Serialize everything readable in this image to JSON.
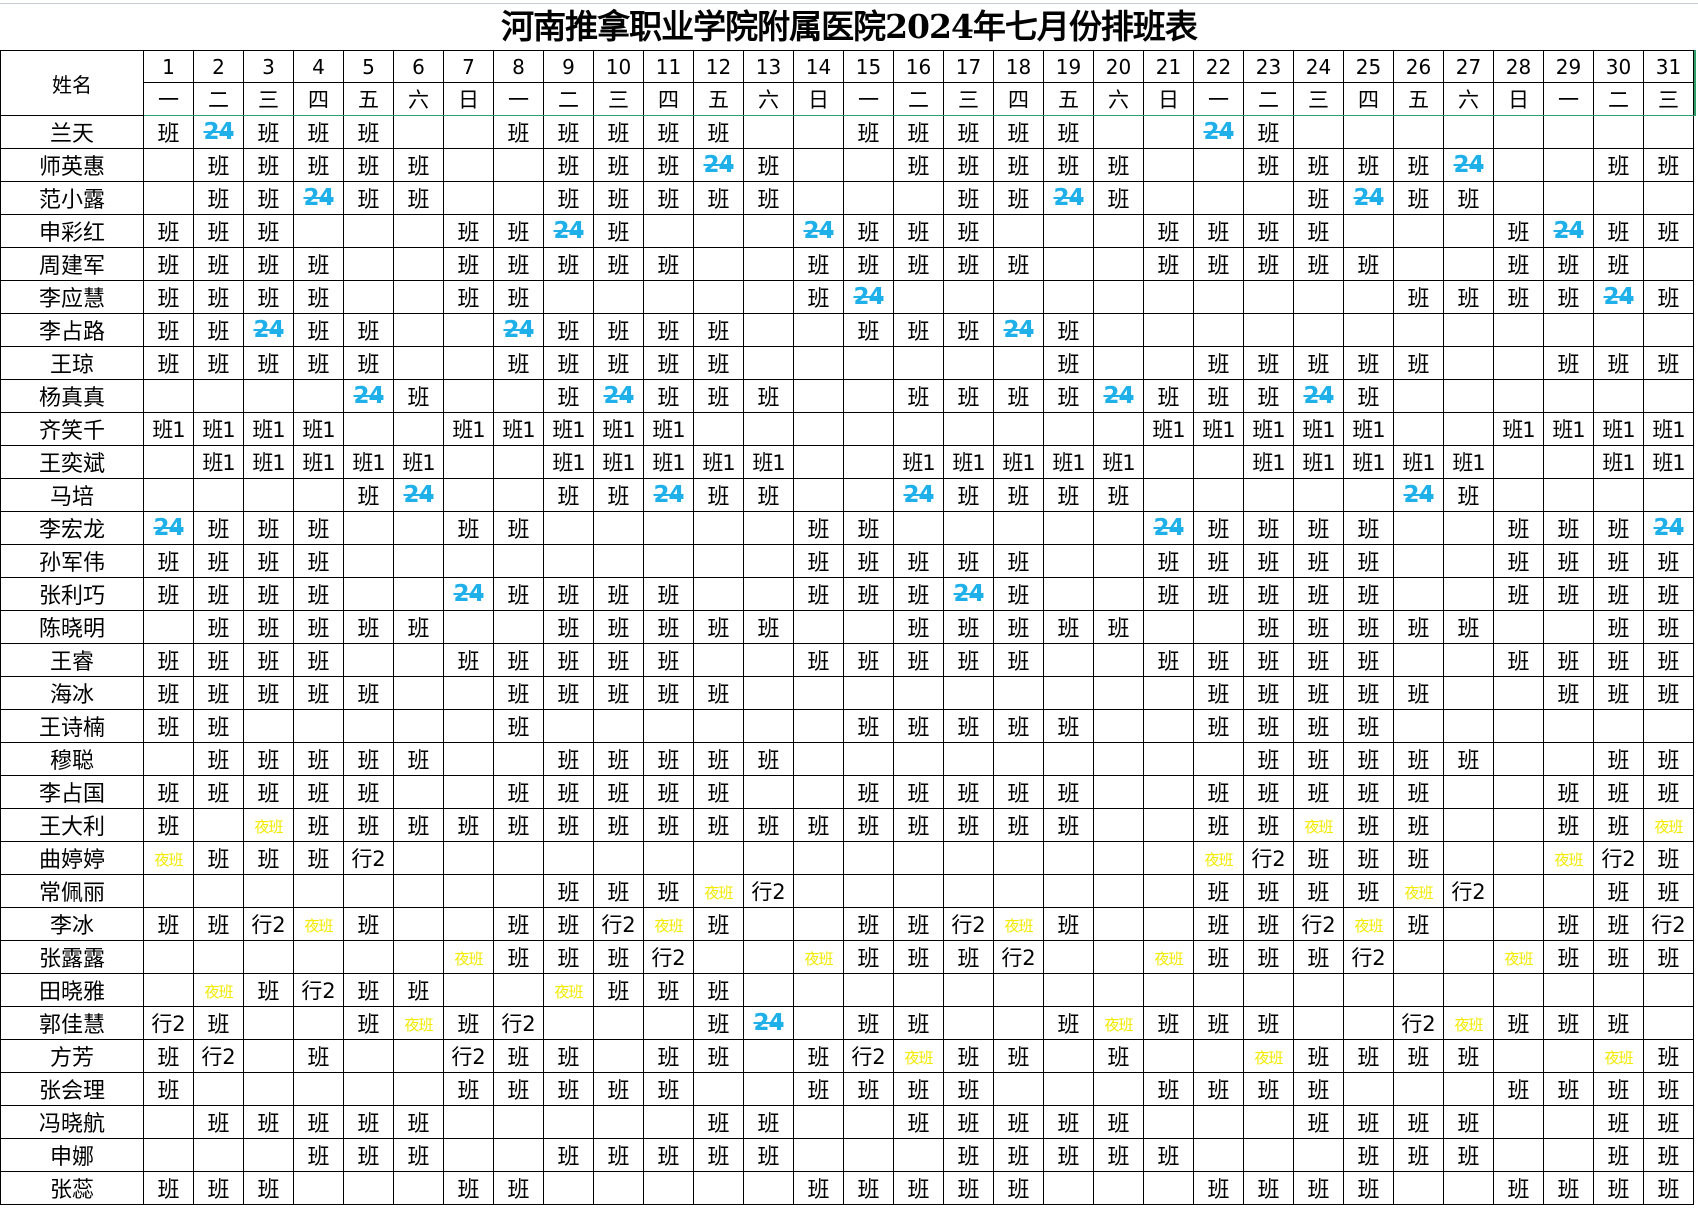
{
  "title": "河南推拿职业学院附属医院2024年七月份排班表",
  "header": {
    "name_label": "姓名",
    "days": [
      "1",
      "2",
      "3",
      "4",
      "5",
      "6",
      "7",
      "8",
      "9",
      "10",
      "11",
      "12",
      "13",
      "14",
      "15",
      "16",
      "17",
      "18",
      "19",
      "20",
      "21",
      "22",
      "23",
      "24",
      "25",
      "26",
      "27",
      "28",
      "29",
      "30",
      "31"
    ],
    "weekdays": [
      "一",
      "二",
      "三",
      "四",
      "五",
      "六",
      "日",
      "一",
      "二",
      "三",
      "四",
      "五",
      "六",
      "日",
      "一",
      "二",
      "三",
      "四",
      "五",
      "六",
      "日",
      "一",
      "二",
      "三",
      "四",
      "五",
      "六",
      "日",
      "一",
      "二",
      "三"
    ]
  },
  "colors": {
    "on_call_24": "#1fb0ea",
    "night_shift": "#f2ea00",
    "grid": "#000000",
    "selection": "#2e9e6a"
  },
  "rows": [
    {
      "name": "兰天",
      "cells": [
        "班",
        "24",
        "班",
        "班",
        "班",
        "",
        "",
        "班",
        "班",
        "班",
        "班",
        "班",
        "",
        "",
        "班",
        "班",
        "班",
        "班",
        "班",
        "",
        "",
        "24",
        "班",
        "",
        "",
        "",
        "",
        "",
        "",
        "",
        ""
      ]
    },
    {
      "name": "师英惠",
      "cells": [
        "",
        "班",
        "班",
        "班",
        "班",
        "班",
        "",
        "",
        "班",
        "班",
        "班",
        "24",
        "班",
        "",
        "",
        "班",
        "班",
        "班",
        "班",
        "班",
        "",
        "",
        "班",
        "班",
        "班",
        "班",
        "24",
        "",
        "",
        "班",
        "班"
      ]
    },
    {
      "name": "范小露",
      "cells": [
        "",
        "班",
        "班",
        "24",
        "班",
        "班",
        "",
        "",
        "班",
        "班",
        "班",
        "班",
        "班",
        "",
        "",
        "",
        "班",
        "班",
        "24",
        "班",
        "",
        "",
        "",
        "班",
        "24",
        "班",
        "班",
        "",
        "",
        "",
        ""
      ]
    },
    {
      "name": "申彩红",
      "cells": [
        "班",
        "班",
        "班",
        "",
        "",
        "",
        "班",
        "班",
        "24",
        "班",
        "",
        "",
        "",
        "24",
        "班",
        "班",
        "班",
        "",
        "",
        "",
        "班",
        "班",
        "班",
        "班",
        "",
        "",
        "",
        "班",
        "24",
        "班",
        "班"
      ]
    },
    {
      "name": "周建军",
      "cells": [
        "班",
        "班",
        "班",
        "班",
        "",
        "",
        "班",
        "班",
        "班",
        "班",
        "班",
        "",
        "",
        "班",
        "班",
        "班",
        "班",
        "班",
        "",
        "",
        "班",
        "班",
        "班",
        "班",
        "班",
        "",
        "",
        "班",
        "班",
        "班",
        ""
      ]
    },
    {
      "name": "李应慧",
      "cells": [
        "班",
        "班",
        "班",
        "班",
        "",
        "",
        "班",
        "班",
        "",
        "",
        "",
        "",
        "",
        "班",
        "24",
        "",
        "",
        "",
        "",
        "",
        "",
        "",
        "",
        "",
        "",
        "班",
        "班",
        "班",
        "班",
        "24",
        "班"
      ]
    },
    {
      "name": "李占路",
      "cells": [
        "班",
        "班",
        "24",
        "班",
        "班",
        "",
        "",
        "24",
        "班",
        "班",
        "班",
        "班",
        "",
        "",
        "班",
        "班",
        "班",
        "24",
        "班",
        "",
        "",
        "",
        "",
        "",
        "",
        "",
        "",
        "",
        "",
        "",
        ""
      ]
    },
    {
      "name": "王琼",
      "cells": [
        "班",
        "班",
        "班",
        "班",
        "班",
        "",
        "",
        "班",
        "班",
        "班",
        "班",
        "班",
        "",
        "",
        "",
        "",
        "",
        "",
        "班",
        "",
        "",
        "班",
        "班",
        "班",
        "班",
        "班",
        "",
        "",
        "班",
        "班",
        "班"
      ]
    },
    {
      "name": "杨真真",
      "cells": [
        "",
        "",
        "",
        "",
        "24",
        "班",
        "",
        "",
        "班",
        "24",
        "班",
        "班",
        "班",
        "",
        "",
        "班",
        "班",
        "班",
        "班",
        "24",
        "班",
        "班",
        "班",
        "24",
        "班",
        "",
        "",
        "",
        "",
        "",
        ""
      ]
    },
    {
      "name": "齐笑千",
      "cells": [
        "班1",
        "班1",
        "班1",
        "班1",
        "",
        "",
        "班1",
        "班1",
        "班1",
        "班1",
        "班1",
        "",
        "",
        "",
        "",
        "",
        "",
        "",
        "",
        "",
        "班1",
        "班1",
        "班1",
        "班1",
        "班1",
        "",
        "",
        "班1",
        "班1",
        "班1",
        "班1"
      ]
    },
    {
      "name": "王奕斌",
      "cells": [
        "",
        "班1",
        "班1",
        "班1",
        "班1",
        "班1",
        "",
        "",
        "班1",
        "班1",
        "班1",
        "班1",
        "班1",
        "",
        "",
        "班1",
        "班1",
        "班1",
        "班1",
        "班1",
        "",
        "",
        "班1",
        "班1",
        "班1",
        "班1",
        "班1",
        "",
        "",
        "班1",
        "班1"
      ]
    },
    {
      "name": "马培",
      "cells": [
        "",
        "",
        "",
        "",
        "班",
        "24",
        "",
        "",
        "班",
        "班",
        "24",
        "班",
        "班",
        "",
        "",
        "24",
        "班",
        "班",
        "班",
        "班",
        "",
        "",
        "",
        "",
        "",
        "24",
        "班",
        "",
        "",
        "",
        ""
      ]
    },
    {
      "name": "李宏龙",
      "cells": [
        "24",
        "班",
        "班",
        "班",
        "",
        "",
        "班",
        "班",
        "",
        "",
        "",
        "",
        "",
        "班",
        "班",
        "",
        "",
        "",
        "",
        "",
        "24",
        "班",
        "班",
        "班",
        "班",
        "",
        "",
        "班",
        "班",
        "班",
        "24"
      ]
    },
    {
      "name": "孙军伟",
      "cells": [
        "班",
        "班",
        "班",
        "班",
        "",
        "",
        "",
        "",
        "",
        "",
        "",
        "",
        "",
        "班",
        "班",
        "班",
        "班",
        "班",
        "",
        "",
        "班",
        "班",
        "班",
        "班",
        "班",
        "",
        "",
        "班",
        "班",
        "班",
        "班"
      ]
    },
    {
      "name": "张利巧",
      "cells": [
        "班",
        "班",
        "班",
        "班",
        "",
        "",
        "24",
        "班",
        "班",
        "班",
        "班",
        "",
        "",
        "班",
        "班",
        "班",
        "24",
        "班",
        "",
        "",
        "班",
        "班",
        "班",
        "班",
        "班",
        "",
        "",
        "班",
        "班",
        "班",
        "班"
      ]
    },
    {
      "name": "陈晓明",
      "cells": [
        "",
        "班",
        "班",
        "班",
        "班",
        "班",
        "",
        "",
        "班",
        "班",
        "班",
        "班",
        "班",
        "",
        "",
        "班",
        "班",
        "班",
        "班",
        "班",
        "",
        "",
        "班",
        "班",
        "班",
        "班",
        "班",
        "",
        "",
        "班",
        "班"
      ]
    },
    {
      "name": "王睿",
      "cells": [
        "班",
        "班",
        "班",
        "班",
        "",
        "",
        "班",
        "班",
        "班",
        "班",
        "班",
        "",
        "",
        "班",
        "班",
        "班",
        "班",
        "班",
        "",
        "",
        "班",
        "班",
        "班",
        "班",
        "班",
        "",
        "",
        "班",
        "班",
        "班",
        "班"
      ]
    },
    {
      "name": "海冰",
      "cells": [
        "班",
        "班",
        "班",
        "班",
        "班",
        "",
        "",
        "班",
        "班",
        "班",
        "班",
        "班",
        "",
        "",
        "",
        "",
        "",
        "",
        "",
        "",
        "",
        "班",
        "班",
        "班",
        "班",
        "班",
        "",
        "",
        "班",
        "班",
        "班"
      ]
    },
    {
      "name": "王诗楠",
      "cells": [
        "班",
        "班",
        "",
        "",
        "",
        "",
        "",
        "班",
        "",
        "",
        "",
        "",
        "",
        "",
        "班",
        "班",
        "班",
        "班",
        "班",
        "",
        "",
        "班",
        "班",
        "班",
        "班",
        "",
        "",
        "",
        "",
        "",
        ""
      ]
    },
    {
      "name": "穆聪",
      "cells": [
        "",
        "班",
        "班",
        "班",
        "班",
        "班",
        "",
        "",
        "班",
        "班",
        "班",
        "班",
        "班",
        "",
        "",
        "",
        "",
        "",
        "",
        "",
        "",
        "",
        "班",
        "班",
        "班",
        "班",
        "班",
        "",
        "",
        "班",
        "班"
      ]
    },
    {
      "name": "李占国",
      "cells": [
        "班",
        "班",
        "班",
        "班",
        "班",
        "",
        "",
        "班",
        "班",
        "班",
        "班",
        "班",
        "",
        "",
        "班",
        "班",
        "班",
        "班",
        "班",
        "",
        "",
        "班",
        "班",
        "班",
        "班",
        "班",
        "",
        "",
        "班",
        "班",
        "班"
      ]
    },
    {
      "name": "王大利",
      "cells": [
        "班",
        "",
        "夜班",
        "班",
        "班",
        "班",
        "班",
        "班",
        "班",
        "班",
        "班",
        "班",
        "班",
        "班",
        "班",
        "班",
        "班",
        "班",
        "班",
        "",
        "",
        "班",
        "班",
        "夜班",
        "班",
        "班",
        "",
        "",
        "班",
        "班",
        "夜班"
      ]
    },
    {
      "name": "曲婷婷",
      "cells": [
        "夜班",
        "班",
        "班",
        "班",
        "行2",
        "",
        "",
        "",
        "",
        "",
        "",
        "",
        "",
        "",
        "",
        "",
        "",
        "",
        "",
        "",
        "",
        "夜班",
        "行2",
        "班",
        "班",
        "班",
        "",
        "",
        "夜班",
        "行2",
        "班"
      ]
    },
    {
      "name": "常佩丽",
      "cells": [
        "",
        "",
        "",
        "",
        "",
        "",
        "",
        "",
        "班",
        "班",
        "班",
        "夜班",
        "行2",
        "",
        "",
        "",
        "",
        "",
        "",
        "",
        "",
        "班",
        "班",
        "班",
        "班",
        "夜班",
        "行2",
        "",
        "",
        "班",
        "班"
      ]
    },
    {
      "name": "李冰",
      "cells": [
        "班",
        "班",
        "行2",
        "夜班",
        "班",
        "",
        "",
        "班",
        "班",
        "行2",
        "夜班",
        "班",
        "",
        "",
        "班",
        "班",
        "行2",
        "夜班",
        "班",
        "",
        "",
        "班",
        "班",
        "行2",
        "夜班",
        "班",
        "",
        "",
        "班",
        "班",
        "行2"
      ]
    },
    {
      "name": "张露露",
      "cells": [
        "",
        "",
        "",
        "",
        "",
        "",
        "夜班",
        "班",
        "班",
        "班",
        "行2",
        "",
        "",
        "夜班",
        "班",
        "班",
        "班",
        "行2",
        "",
        "",
        "夜班",
        "班",
        "班",
        "班",
        "行2",
        "",
        "",
        "夜班",
        "班",
        "班",
        "班"
      ]
    },
    {
      "name": "田晓雅",
      "cells": [
        "",
        "夜班",
        "班",
        "行2",
        "班",
        "班",
        "",
        "",
        "夜班",
        "班",
        "班",
        "班",
        "",
        "",
        "",
        "",
        "",
        "",
        "",
        "",
        "",
        "",
        "",
        "",
        "",
        "",
        "",
        "",
        "",
        "",
        ""
      ]
    },
    {
      "name": "郭佳慧",
      "cells": [
        "行2",
        "班",
        "",
        "",
        "班",
        "夜班",
        "班",
        "行2",
        "",
        "",
        "",
        "班",
        "24",
        "",
        "班",
        "班",
        "",
        "",
        "班",
        "夜班",
        "班",
        "班",
        "班",
        "",
        "",
        "行2",
        "夜班",
        "班",
        "班",
        "班",
        ""
      ]
    },
    {
      "name": "方芳",
      "cells": [
        "班",
        "行2",
        "",
        "班",
        "",
        "",
        "行2",
        "班",
        "班",
        "",
        "班",
        "班",
        "",
        "班",
        "行2",
        "夜班",
        "班",
        "班",
        "",
        "班",
        "",
        "",
        "夜班",
        "班",
        "班",
        "班",
        "班",
        "",
        "",
        "夜班",
        "班"
      ]
    },
    {
      "name": "张会理",
      "cells": [
        "班",
        "",
        "",
        "",
        "",
        "",
        "班",
        "班",
        "班",
        "班",
        "班",
        "",
        "",
        "班",
        "班",
        "班",
        "班",
        "",
        "",
        "",
        "班",
        "班",
        "班",
        "班",
        "",
        "",
        "",
        "班",
        "班",
        "班",
        "班"
      ]
    },
    {
      "name": "冯晓航",
      "cells": [
        "",
        "班",
        "班",
        "班",
        "班",
        "班",
        "",
        "",
        "",
        "",
        "",
        "班",
        "班",
        "",
        "",
        "班",
        "班",
        "班",
        "班",
        "班",
        "",
        "",
        "",
        "班",
        "班",
        "班",
        "班",
        "",
        "",
        "班",
        "班"
      ]
    },
    {
      "name": "申娜",
      "cells": [
        "",
        "",
        "",
        "班",
        "班",
        "班",
        "",
        "",
        "班",
        "班",
        "班",
        "班",
        "班",
        "",
        "",
        "",
        "班",
        "班",
        "班",
        "班",
        "班",
        "",
        "",
        "",
        "班",
        "班",
        "班",
        "",
        "",
        "班",
        "班"
      ]
    },
    {
      "name": "张蕊",
      "cells": [
        "班",
        "班",
        "班",
        "",
        "",
        "",
        "班",
        "班",
        "",
        "",
        "",
        "",
        "",
        "班",
        "班",
        "班",
        "班",
        "班",
        "",
        "",
        "",
        "班",
        "班",
        "班",
        "班",
        "",
        "",
        "班",
        "班",
        "班",
        "班"
      ]
    }
  ]
}
